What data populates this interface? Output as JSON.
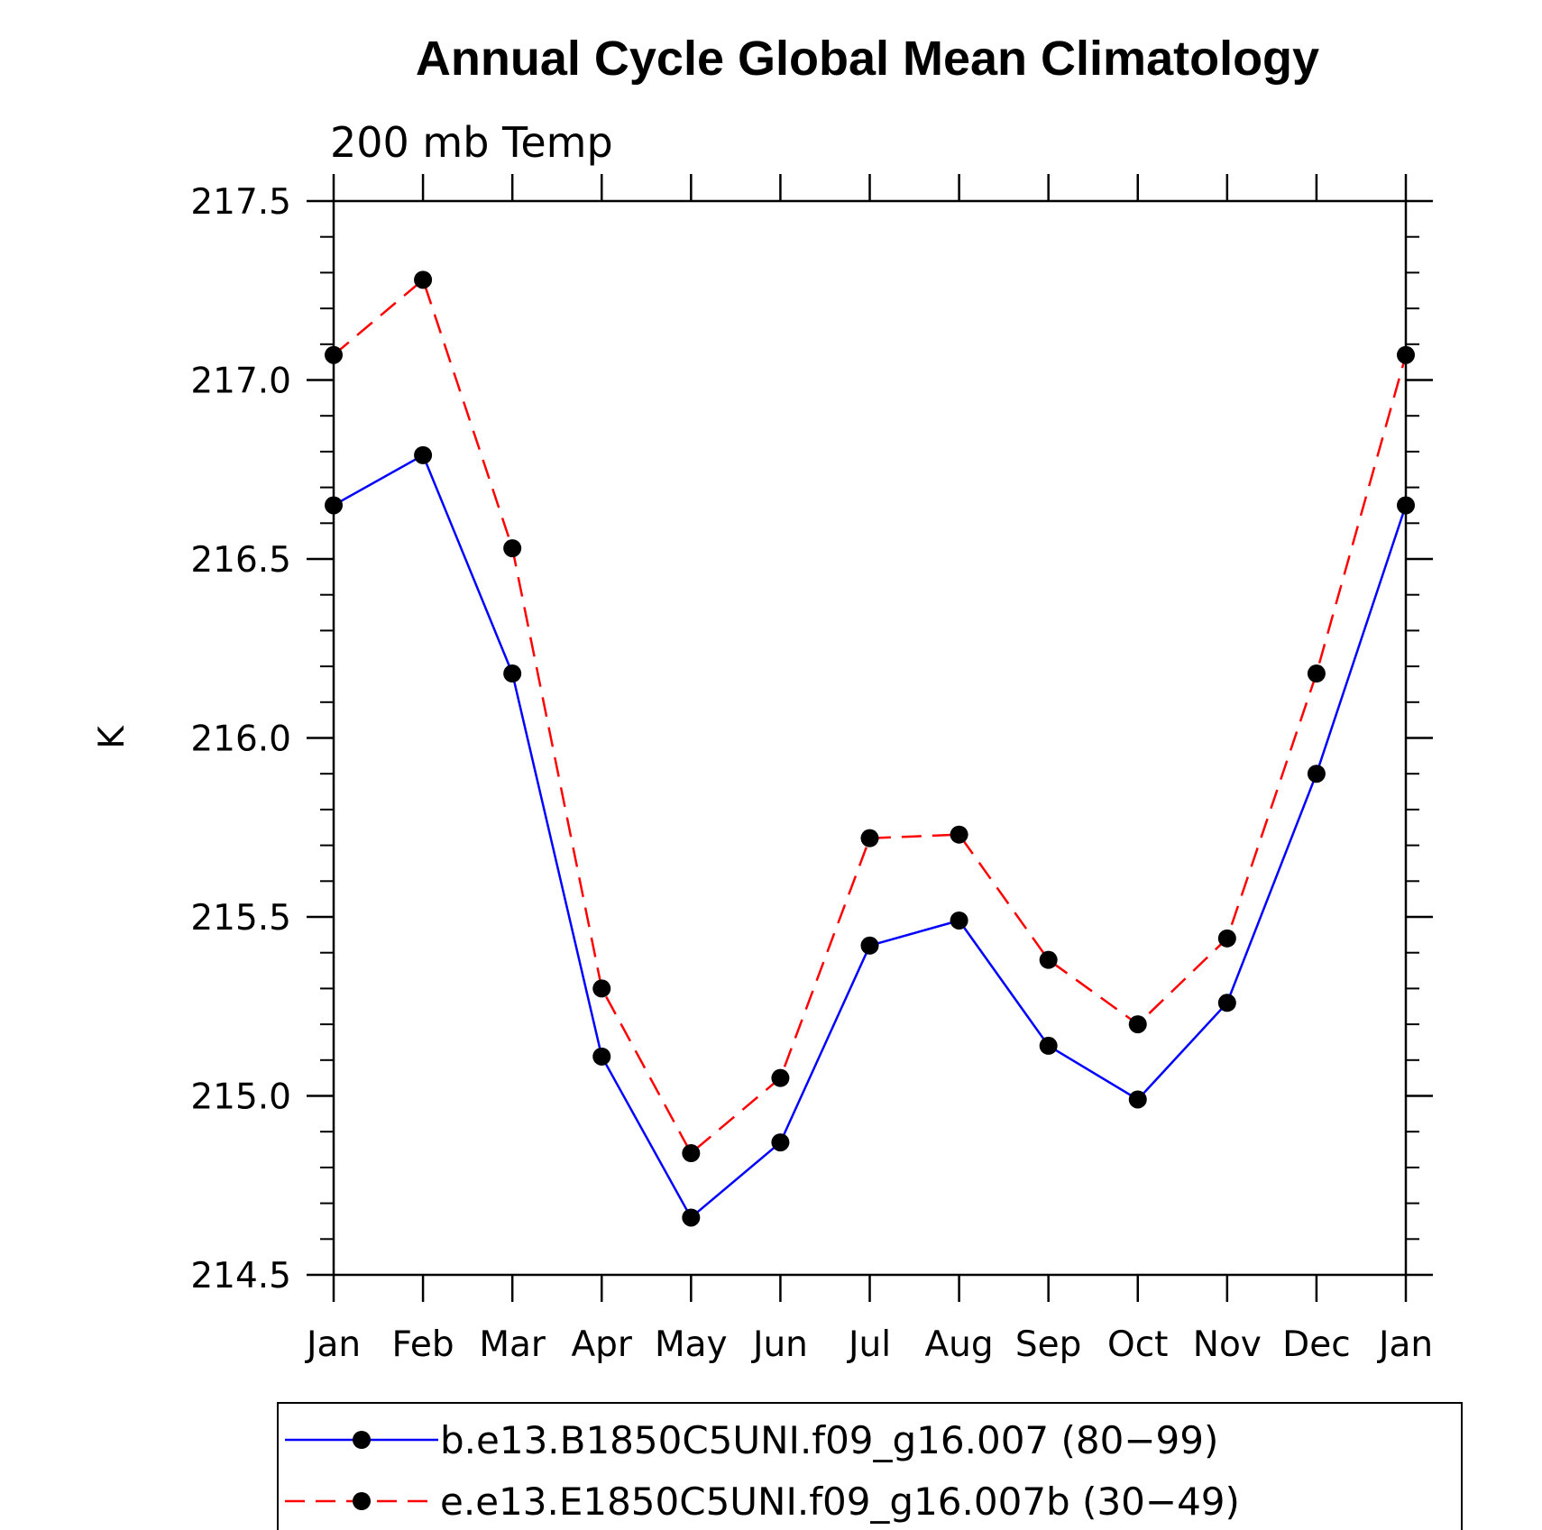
{
  "chart_data": {
    "type": "line",
    "title": "Annual Cycle Global Mean Climatology",
    "subtitle": "200 mb Temp",
    "xlabel": "",
    "ylabel": "K",
    "categories": [
      "Jan",
      "Feb",
      "Mar",
      "Apr",
      "May",
      "Jun",
      "Jul",
      "Aug",
      "Sep",
      "Oct",
      "Nov",
      "Dec",
      "Jan"
    ],
    "ylim": [
      214.5,
      217.5
    ],
    "yticks": [
      "214.5",
      "215.0",
      "215.5",
      "216.0",
      "216.5",
      "217.0",
      "217.5"
    ],
    "yminor_step": 0.1,
    "grid": false,
    "legend_position": "bottom",
    "series": [
      {
        "name": "b.e13.B1850C5UNI.f09_g16.007 (80−99)",
        "color": "#0000ff",
        "style": "solid",
        "values": [
          216.65,
          216.79,
          216.18,
          215.11,
          214.66,
          214.87,
          215.42,
          215.49,
          215.14,
          214.99,
          215.26,
          215.9,
          216.65
        ]
      },
      {
        "name": "e.e13.E1850C5UNI.f09_g16.007b (30−49)",
        "color": "#ff0000",
        "style": "dashed",
        "values": [
          217.07,
          217.28,
          216.53,
          215.3,
          214.84,
          215.05,
          215.72,
          215.73,
          215.38,
          215.2,
          215.44,
          216.18,
          217.07
        ]
      }
    ]
  }
}
